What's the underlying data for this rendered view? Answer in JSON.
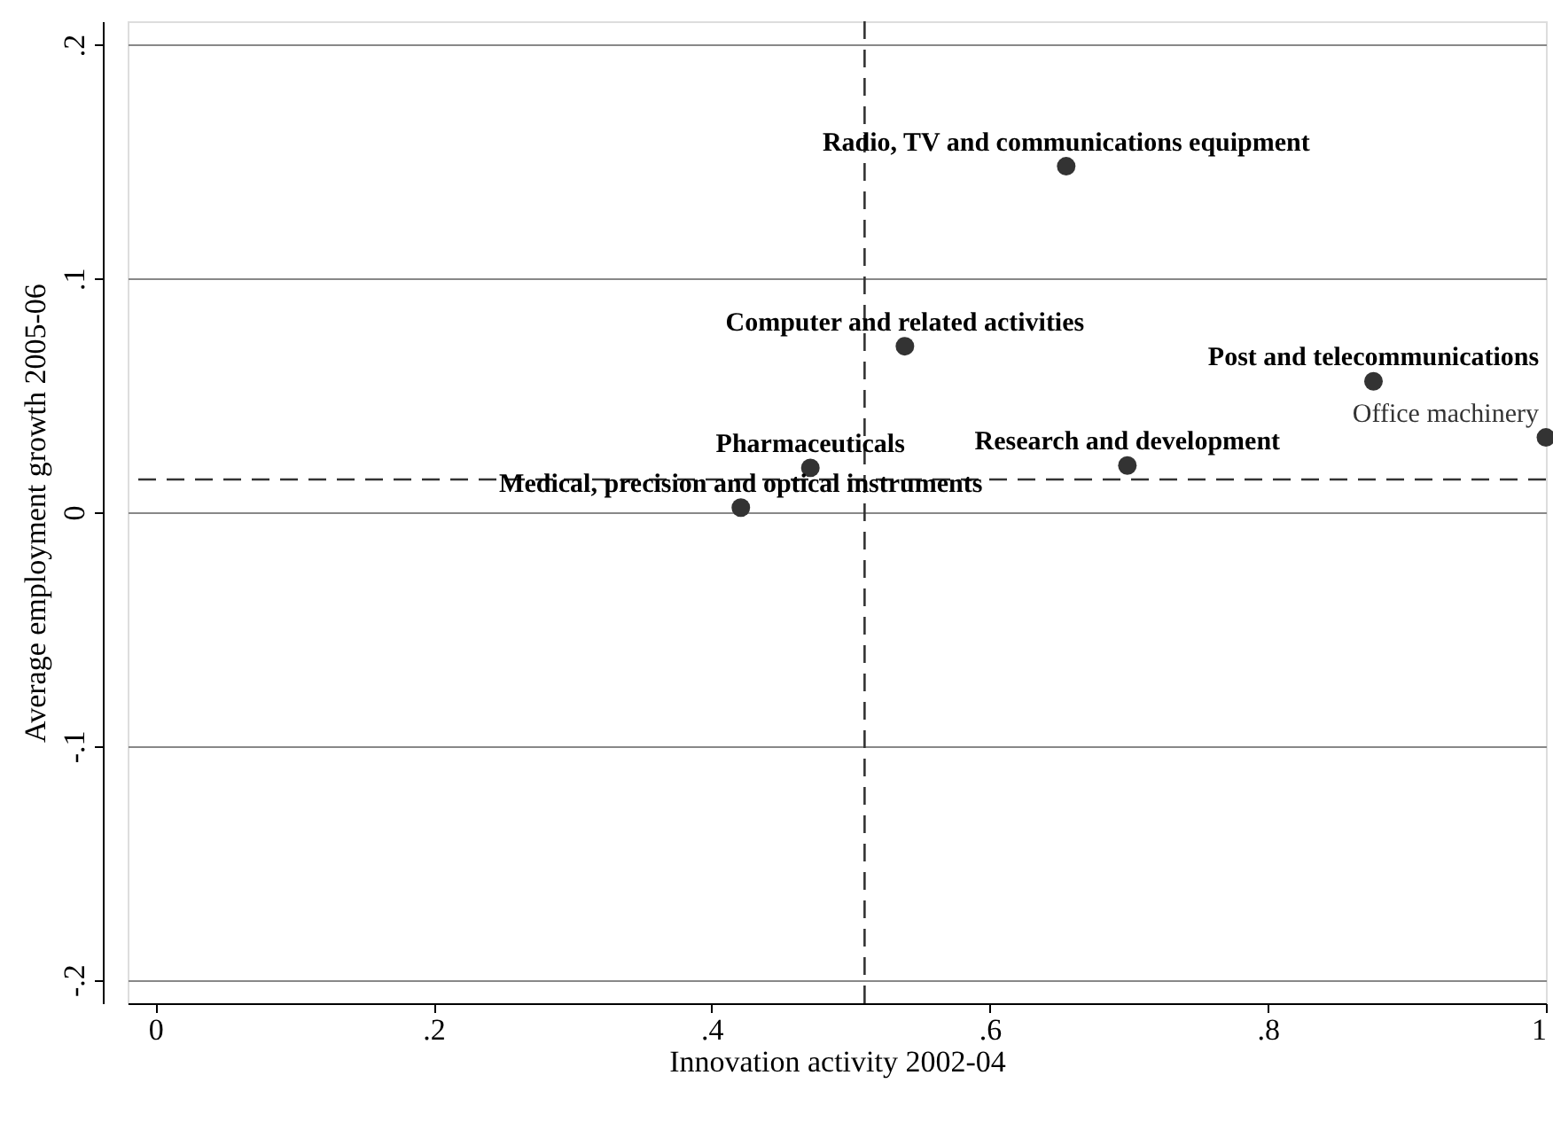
{
  "chart_data": {
    "type": "scatter",
    "xlabel": "Innovation activity 2002-04",
    "ylabel": "Average employment growth 2005-06",
    "x": [
      0.655,
      0.539,
      0.876,
      1.0,
      0.699,
      0.471,
      0.421
    ],
    "series": [
      {
        "color": "#333333",
        "values": [
          0.148,
          0.071,
          0.056,
          0.032,
          0.02,
          0.019,
          0.002
        ]
      }
    ],
    "annotations": [
      {
        "text": "Radio, TV and communications equipment",
        "x": 0.655,
        "y": 0.148
      },
      {
        "text": "Computer and related activities",
        "x": 0.539,
        "y": 0.071
      },
      {
        "text": "Post and telecommunications",
        "x": 0.876,
        "y": 0.056
      },
      {
        "text": "Office machinery",
        "x": 1.0,
        "y": 0.032
      },
      {
        "text": "Research and development",
        "x": 0.699,
        "y": 0.02
      },
      {
        "text": "Pharmaceuticals",
        "x": 0.471,
        "y": 0.019
      },
      {
        "text": "Medical, precision and optical instruments",
        "x": 0.421,
        "y": 0.002
      }
    ],
    "xlim": [
      -0.02,
      1.0
    ],
    "ylim": [
      -0.21,
      0.21
    ],
    "xticks": [
      {
        "value": 0,
        "label": "0"
      },
      {
        "value": 0.2,
        "label": ".2"
      },
      {
        "value": 0.4,
        "label": ".4"
      },
      {
        "value": 0.6,
        "label": ".6"
      },
      {
        "value": 0.8,
        "label": ".8"
      },
      {
        "value": 1,
        "label": "1"
      }
    ],
    "yticks": [
      {
        "value": -0.2,
        "label": "-.2"
      },
      {
        "value": -0.1,
        "label": "-.1"
      },
      {
        "value": 0,
        "label": "0"
      },
      {
        "value": 0.1,
        "label": ".1"
      },
      {
        "value": 0.2,
        "label": ".2"
      }
    ],
    "ref_lines": [
      {
        "axis": "x",
        "value": 0.51,
        "color": "#333333",
        "line_style": "dashed"
      },
      {
        "axis": "y",
        "value": 0.014,
        "color": "#333333",
        "line_style": "dashed"
      }
    ],
    "grid": "y",
    "marker": "circle"
  }
}
